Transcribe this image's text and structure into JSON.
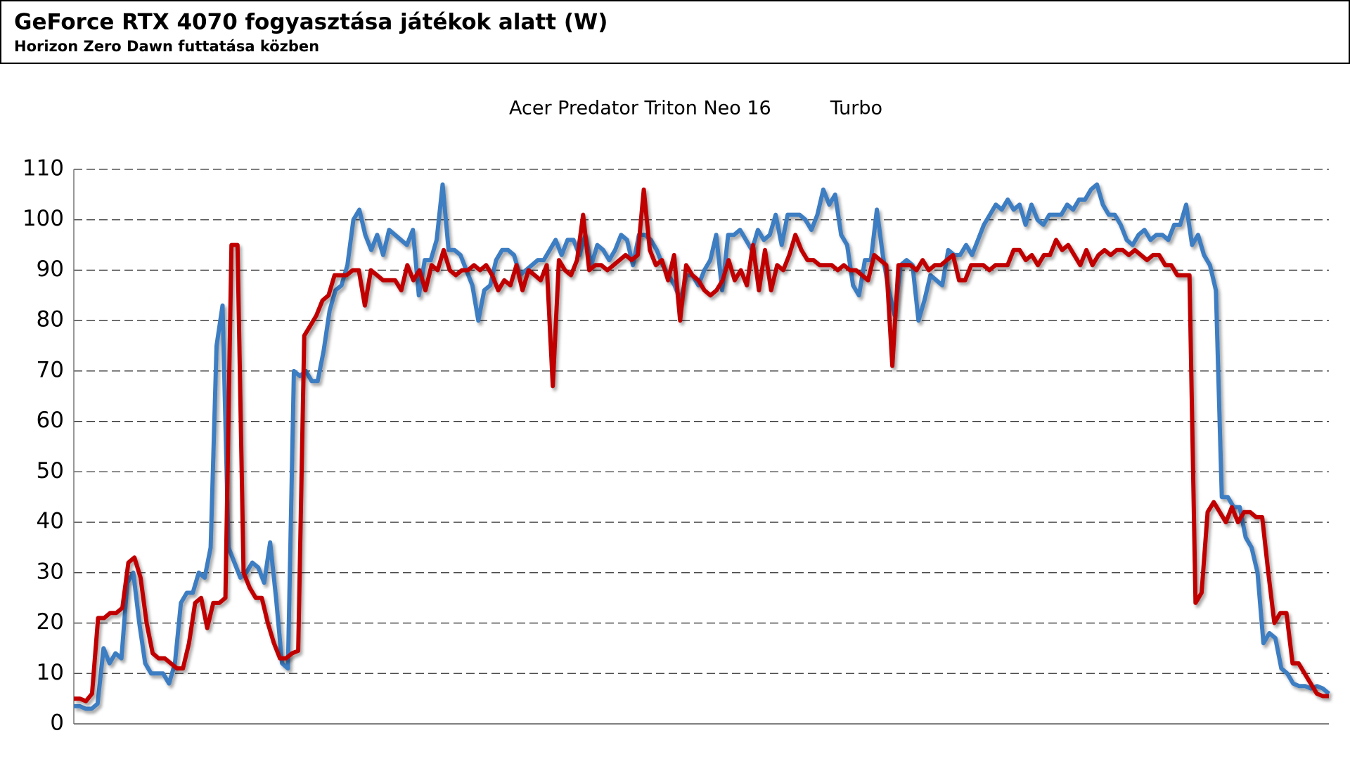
{
  "chart_data": {
    "type": "line",
    "title": "GeForce RTX 4070 fogyasztása játékok alatt (W)",
    "subtitle": "Horizon Zero Dawn futtatása közben",
    "ylim": [
      0,
      110
    ],
    "yticks": [
      0,
      10,
      20,
      30,
      40,
      50,
      60,
      70,
      80,
      90,
      100,
      110
    ],
    "grid": true,
    "legend": "top",
    "series": [
      {
        "name": "Acer Predator Triton Neo 16",
        "color": "#3d7dc2",
        "values": [
          3.5,
          3.5,
          3,
          3,
          4,
          15,
          12,
          14,
          13,
          28,
          30,
          20,
          12,
          10,
          10,
          10,
          8,
          12,
          24,
          26,
          26,
          30,
          29,
          35,
          75,
          83,
          35,
          32,
          29,
          30,
          32,
          31,
          28,
          36,
          25,
          12,
          11,
          70,
          69,
          70,
          68,
          68,
          74,
          82,
          86,
          87,
          91,
          100,
          102,
          97,
          94,
          97,
          93,
          98,
          97,
          96,
          95,
          98,
          85,
          92,
          92,
          96,
          107,
          94,
          94,
          93,
          90,
          87,
          80,
          86,
          87,
          92,
          94,
          94,
          93,
          89,
          90,
          91,
          92,
          92,
          94,
          96,
          93,
          96,
          96,
          93,
          97,
          91,
          95,
          94,
          92,
          94,
          97,
          96,
          91,
          97,
          97,
          96,
          94,
          91,
          89,
          87,
          84,
          89,
          89,
          87,
          90,
          92,
          97,
          86,
          97,
          97,
          98,
          96,
          94,
          98,
          96,
          97,
          101,
          95,
          101,
          101,
          101,
          100,
          98,
          101,
          106,
          103,
          105,
          97,
          95,
          87,
          85,
          92,
          92,
          102,
          93,
          86,
          81,
          91,
          92,
          91,
          80,
          84,
          89,
          88,
          87,
          94,
          93,
          93,
          95,
          93,
          96,
          99,
          101,
          103,
          102,
          104,
          102,
          103,
          99,
          103,
          100,
          99,
          101,
          101,
          101,
          103,
          102,
          104,
          104,
          106,
          107,
          103,
          101,
          101,
          99,
          96,
          95,
          97,
          98,
          96,
          97,
          97,
          96,
          99,
          99,
          103,
          95,
          97,
          93,
          91,
          86,
          45,
          45,
          43,
          43,
          37,
          35,
          30,
          16,
          18,
          17,
          11,
          10,
          8,
          7.5,
          7.5,
          7,
          7.5,
          7,
          6
        ]
      },
      {
        "name": "Turbo",
        "color": "#c00000",
        "values": [
          5,
          5,
          4.5,
          6,
          21,
          21,
          22,
          22,
          23,
          32,
          33,
          29,
          20,
          14,
          13,
          13,
          12,
          11,
          11,
          16,
          24,
          25,
          19,
          24,
          24,
          25,
          95,
          95,
          30,
          27,
          25,
          25,
          20,
          16,
          13,
          13,
          14,
          14.5,
          77,
          79,
          81,
          84,
          85,
          89,
          89,
          89,
          90,
          90,
          83,
          90,
          89,
          88,
          88,
          88,
          86,
          91,
          88,
          90,
          86,
          91,
          90,
          94,
          90,
          89,
          90,
          90,
          91,
          90,
          91,
          89,
          86,
          88,
          87,
          91,
          86,
          90,
          89,
          88,
          91,
          67,
          92,
          90,
          89,
          92,
          101,
          90,
          91,
          91,
          90,
          91,
          92,
          93,
          92,
          93,
          106,
          94,
          91,
          92,
          88,
          93,
          80,
          91,
          89,
          88,
          86,
          85,
          86,
          88,
          92,
          88,
          90,
          87,
          95,
          86,
          94,
          86,
          91,
          90,
          93,
          97,
          94,
          92,
          92,
          91,
          91,
          91,
          90,
          91,
          90,
          90,
          89,
          88,
          93,
          92,
          91,
          71,
          91,
          91,
          91,
          90,
          92,
          90,
          91,
          91,
          92,
          93,
          88,
          88,
          91,
          91,
          91,
          90,
          91,
          91,
          91,
          94,
          94,
          92,
          93,
          91,
          93,
          93,
          96,
          94,
          95,
          93,
          91,
          94,
          91,
          93,
          94,
          93,
          94,
          94,
          93,
          94,
          93,
          92,
          93,
          93,
          91,
          91,
          89,
          89,
          89,
          24,
          26,
          42,
          44,
          42,
          40,
          43,
          40,
          42,
          42,
          41,
          41,
          30,
          20,
          22,
          22,
          12,
          12,
          10,
          8,
          6,
          5.5,
          5.5
        ]
      }
    ]
  }
}
